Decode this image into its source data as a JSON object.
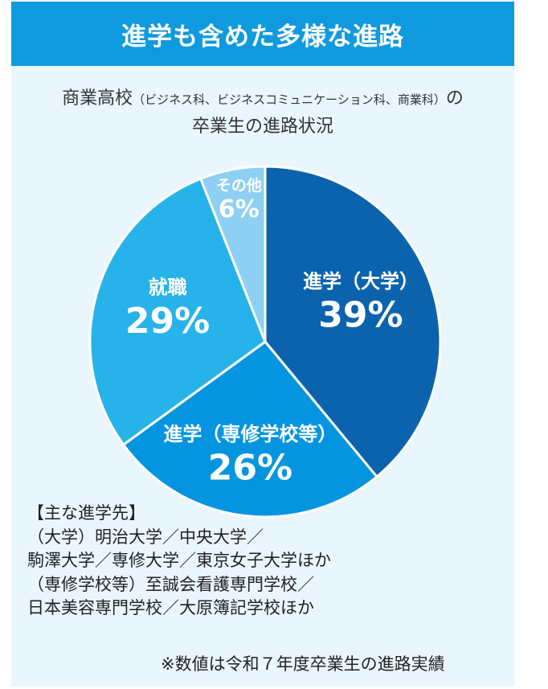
{
  "header": {
    "title": "進学も含めた多様な進路"
  },
  "subtitle": {
    "line1_main": "商業高校",
    "line1_paren": "（ビジネス科、ビジネスコミュニケーション科、商業科）",
    "line1_tail": "の",
    "line2": "卒業生の進路状況"
  },
  "chart_data": {
    "type": "pie",
    "slices": [
      {
        "label": "進学（大学）",
        "value": 39,
        "value_label": "39%",
        "color": "#0b63ad"
      },
      {
        "label": "進学（専修学校等）",
        "value": 26,
        "value_label": "26%",
        "color": "#0595e0"
      },
      {
        "label": "就職",
        "value": 29,
        "value_label": "29%",
        "color": "#27b3ea"
      },
      {
        "label": "その他",
        "value": 6,
        "value_label": "6%",
        "color": "#8dd0f3"
      }
    ],
    "start": "12 o'clock",
    "direction": "clockwise"
  },
  "notes": {
    "heading": "【主な進学先】",
    "lines": [
      "（大学）明治大学／中央大学／",
      "駒澤大学／専修大学／東京女子大学ほか",
      "（専修学校等）至誠会看護専門学校／",
      "日本美容専門学校／大原簿記学校ほか"
    ],
    "footnote": "※数値は令和７年度卒業生の進路実績"
  }
}
